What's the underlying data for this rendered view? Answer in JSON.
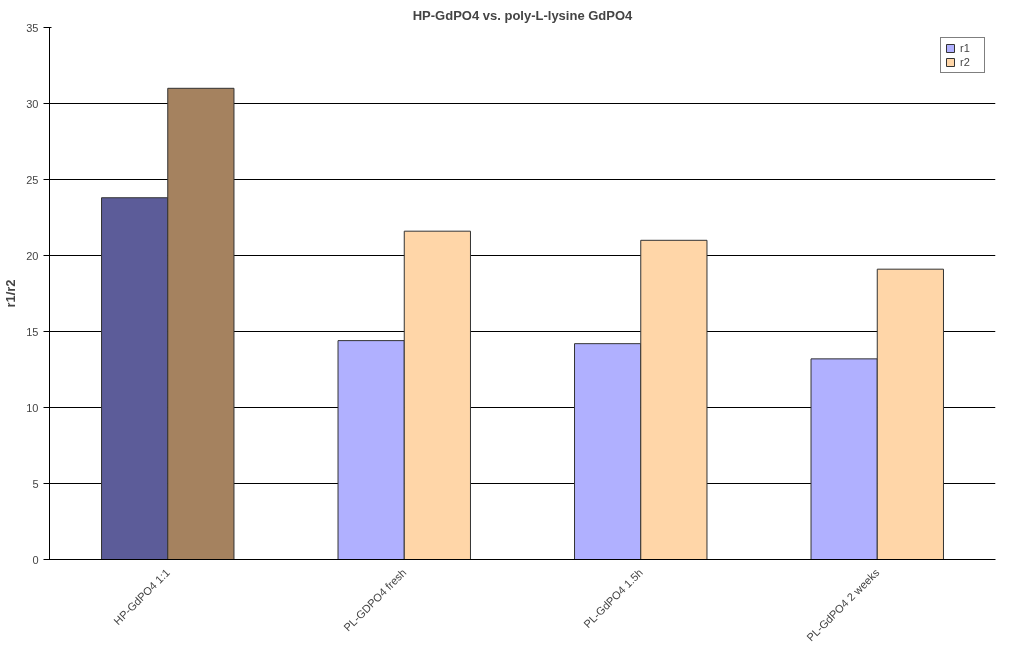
{
  "chart_data": {
    "type": "bar",
    "title": "HP-GdPO4 vs. poly-L-lysine GdPO4",
    "ylabel": "r1/r2",
    "categories": [
      "HP-GdPO4 1:1",
      "PL-GDPO4 fresh",
      "PL-GdPO4 1.5h",
      "PL-GdPO4 2 weeks"
    ],
    "series": [
      {
        "name": "r1",
        "color": "#b0b0ff",
        "colors": [
          "#5c5c99",
          "#b0b0ff",
          "#b0b0ff",
          "#b0b0ff"
        ],
        "values": [
          23.8,
          14.4,
          14.2,
          13.2
        ]
      },
      {
        "name": "r2",
        "color": "#ffd6a8",
        "colors": [
          "#a5825f",
          "#ffd6a8",
          "#ffd6a8",
          "#ffd6a8"
        ],
        "values": [
          31.0,
          21.6,
          21.0,
          19.1
        ]
      }
    ],
    "ylim": [
      0,
      35
    ],
    "yticks": [
      0,
      5,
      10,
      15,
      20,
      25,
      30,
      35
    ],
    "grid": "y",
    "legend": "top right"
  }
}
